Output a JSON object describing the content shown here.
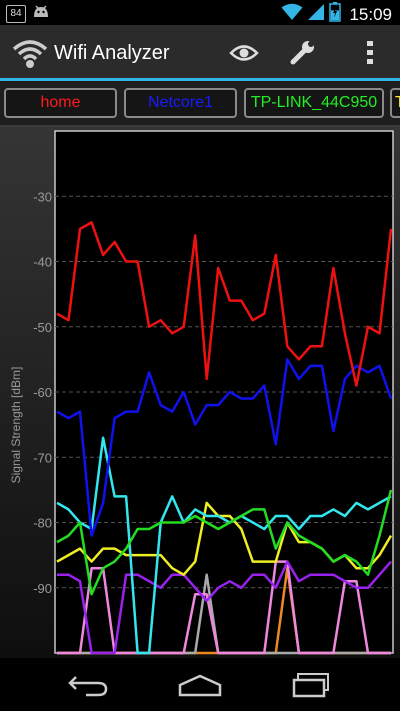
{
  "status": {
    "notification_count": "84",
    "time": "15:09",
    "battery_level": 0.6
  },
  "app": {
    "title": "Wifi Analyzer",
    "icons": [
      "wifi-app-icon",
      "eye-icon",
      "wrench-icon",
      "overflow-menu-icon"
    ]
  },
  "tabs": [
    {
      "label": "home",
      "color": "#ff1a1a"
    },
    {
      "label": "Netcore1",
      "color": "#1a1aff"
    },
    {
      "label": "TP-LINK_44C950",
      "color": "#22ee22"
    },
    {
      "label": "T",
      "color": "#ffee33"
    }
  ],
  "chart_data": {
    "type": "line",
    "ylabel": "Signal Strength [dBm]",
    "yticks": [
      "-30",
      "-40",
      "-50",
      "-60",
      "-70",
      "-80",
      "-90"
    ],
    "ylim": [
      -100,
      -20
    ],
    "grid": true,
    "series": [
      {
        "name": "home",
        "color": "#ee1111",
        "values": [
          -48,
          -49,
          -35,
          -34,
          -39,
          -37,
          -40,
          -40,
          -50,
          -49,
          -51,
          -50,
          -36,
          -58,
          -41,
          -46,
          -46,
          -49,
          -48,
          -39,
          -53,
          -55,
          -53,
          -53,
          -41,
          -51,
          -59,
          -50,
          -51,
          -35
        ]
      },
      {
        "name": "Netcore1",
        "color": "#1111ee",
        "values": [
          -63,
          -64,
          -63,
          -82,
          -77,
          -64,
          -63,
          -63,
          -57,
          -62,
          -63,
          -60,
          -65,
          -62,
          -62,
          -60,
          -61,
          -61,
          -59,
          -68,
          -55,
          -58,
          -56,
          -56,
          -66,
          -58,
          -56,
          -57,
          -56,
          -61
        ]
      },
      {
        "name": "TP-LINK_44C950",
        "color": "#22dd22",
        "values": [
          -83,
          -82,
          -80,
          -91,
          -87,
          -86,
          -84,
          -81,
          -81,
          -80,
          -80,
          -80,
          -79,
          -80,
          -81,
          -80,
          -79,
          -78,
          -78,
          -84,
          -80,
          -82,
          -83,
          -84,
          -86,
          -85,
          -86,
          -88,
          -82,
          -75
        ]
      },
      {
        "name": "",
        "color": "#33e6ee",
        "values": [
          -77,
          -78,
          -80,
          -81,
          -67,
          -76,
          -76,
          -100,
          -100,
          -80,
          -76,
          -80,
          -78,
          -79,
          -79,
          -80,
          -79,
          -80,
          -81,
          -79,
          -79,
          -81,
          -79,
          -79,
          -78,
          -79,
          -77,
          -78,
          -77,
          -76
        ]
      },
      {
        "name": "",
        "color": "#eeee22",
        "values": [
          -86,
          -85,
          -84,
          -86,
          -84,
          -84,
          -85,
          -85,
          -85,
          -85,
          -87,
          -88,
          -86,
          -77,
          -79,
          -79,
          -81,
          -86,
          -86,
          -86,
          -80,
          -83,
          -83,
          -84,
          -86,
          -85,
          -87,
          -87,
          -85,
          -82
        ]
      },
      {
        "name": "",
        "color": "#9922ee",
        "values": [
          -88,
          -88,
          -89,
          -100,
          -100,
          -100,
          -88,
          -88,
          -89,
          -90,
          -88,
          -88,
          -90,
          -92,
          -90,
          -89,
          -90,
          -88,
          -88,
          -90,
          -86,
          -89,
          -88,
          -88,
          -88,
          -89,
          -90,
          -90,
          -88,
          -86
        ]
      },
      {
        "name": "",
        "color": "#ee88dd",
        "values": [
          -100,
          -100,
          -100,
          -87,
          -87,
          -100,
          -100,
          -100,
          -100,
          -100,
          -100,
          -100,
          -91,
          -91,
          -100,
          -100,
          -100,
          -100,
          -100,
          -86,
          -86,
          -100,
          -100,
          -100,
          -100,
          -89,
          -89,
          -100,
          -100,
          -100
        ]
      },
      {
        "name": "",
        "color": "#aaaaaa",
        "values": [
          -100,
          -100,
          -100,
          -100,
          -100,
          -100,
          -100,
          -100,
          -100,
          -100,
          -100,
          -100,
          -100,
          -88,
          -100,
          -100,
          -100,
          -100,
          -100,
          -100,
          -100,
          -100,
          -100,
          -100,
          -100,
          -100,
          -100,
          -100,
          -100,
          -100
        ]
      },
      {
        "name": "",
        "color": "#ee8822",
        "values": [
          -100,
          -100,
          -100,
          -100,
          -100,
          -100,
          -100,
          -100,
          -100,
          -100,
          -100,
          -100,
          -100,
          -100,
          -100,
          -100,
          -100,
          -100,
          -100,
          -100,
          -87,
          -100,
          -100,
          -100,
          -100,
          -100,
          -100,
          -100,
          -100,
          -100
        ]
      }
    ]
  }
}
